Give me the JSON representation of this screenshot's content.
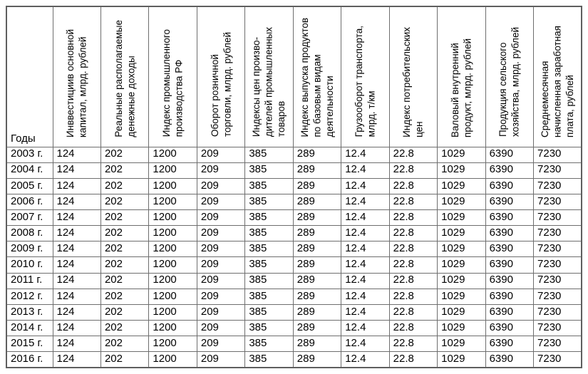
{
  "table": {
    "year_header": "Годы",
    "columns": [
      "Инввестициив основной\nкапитал, млрд. рублей",
      "Реальные располагаемые\nденежные доходы",
      "Индекс промышленного\nпроизводства РФ",
      "Оборот розничной\nторговли, млрд. рублей",
      "Индексы цен произво-\nдителей промышленных\nтоваров",
      "Индекс выпуска продуктов\nпо базовым видам\nдеятельности",
      "Грузооборот транспорта,\nмлрд. т/км",
      "Индекс потребительских\nцен",
      "Валовый внутренний\nпродукт, млрд. рублей",
      "Продукция сельского\nхозяйства, млрд. рублей",
      "Среднемесячная\nначисленная заработная\nплата, рублей"
    ],
    "rows": [
      {
        "year": "2003 г.",
        "values": [
          "124",
          "202",
          "1200",
          "209",
          "385",
          "289",
          "12.4",
          "22.8",
          "1029",
          "6390",
          "7230"
        ]
      },
      {
        "year": "2004 г.",
        "values": [
          "124",
          "202",
          "1200",
          "209",
          "385",
          "289",
          "12.4",
          "22.8",
          "1029",
          "6390",
          "7230"
        ]
      },
      {
        "year": "2005 г.",
        "values": [
          "124",
          "202",
          "1200",
          "209",
          "385",
          "289",
          "12.4",
          "22.8",
          "1029",
          "6390",
          "7230"
        ]
      },
      {
        "year": "2006 г.",
        "values": [
          "124",
          "202",
          "1200",
          "209",
          "385",
          "289",
          "12.4",
          "22.8",
          "1029",
          "6390",
          "7230"
        ]
      },
      {
        "year": "2007 г.",
        "values": [
          "124",
          "202",
          "1200",
          "209",
          "385",
          "289",
          "12.4",
          "22.8",
          "1029",
          "6390",
          "7230"
        ]
      },
      {
        "year": "2008 г.",
        "values": [
          "124",
          "202",
          "1200",
          "209",
          "385",
          "289",
          "12.4",
          "22.8",
          "1029",
          "6390",
          "7230"
        ]
      },
      {
        "year": "2009 г.",
        "values": [
          "124",
          "202",
          "1200",
          "209",
          "385",
          "289",
          "12.4",
          "22.8",
          "1029",
          "6390",
          "7230"
        ]
      },
      {
        "year": "2010 г.",
        "values": [
          "124",
          "202",
          "1200",
          "209",
          "385",
          "289",
          "12.4",
          "22.8",
          "1029",
          "6390",
          "7230"
        ]
      },
      {
        "year": "2011 г.",
        "values": [
          "124",
          "202",
          "1200",
          "209",
          "385",
          "289",
          "12.4",
          "22.8",
          "1029",
          "6390",
          "7230"
        ]
      },
      {
        "year": "2012 г.",
        "values": [
          "124",
          "202",
          "1200",
          "209",
          "385",
          "289",
          "12.4",
          "22.8",
          "1029",
          "6390",
          "7230"
        ]
      },
      {
        "year": "2013 г.",
        "values": [
          "124",
          "202",
          "1200",
          "209",
          "385",
          "289",
          "12.4",
          "22.8",
          "1029",
          "6390",
          "7230"
        ]
      },
      {
        "year": "2014 г.",
        "values": [
          "124",
          "202",
          "1200",
          "209",
          "385",
          "289",
          "12.4",
          "22.8",
          "1029",
          "6390",
          "7230"
        ]
      },
      {
        "year": "2015 г.",
        "values": [
          "124",
          "202",
          "1200",
          "209",
          "385",
          "289",
          "12.4",
          "22.8",
          "1029",
          "6390",
          "7230"
        ]
      },
      {
        "year": "2016 г.",
        "values": [
          "124",
          "202",
          "1200",
          "209",
          "385",
          "289",
          "12.4",
          "22.8",
          "1029",
          "6390",
          "7230"
        ]
      }
    ]
  },
  "chart_data": {
    "type": "table",
    "columns": [
      "Годы",
      "Инввестициив основной капитал, млрд. рублей",
      "Реальные располагаемые денежные доходы",
      "Индекс промышленного производства РФ",
      "Оборот розничной торговли, млрд. рублей",
      "Индексы цен производителей промышленных товаров",
      "Индекс выпуска продуктов по базовым видам деятельности",
      "Грузооборот транспорта, млрд. т/км",
      "Индекс потребительских цен",
      "Валовый внутренний продукт, млрд. рублей",
      "Продукция сельского хозяйства, млрд. рублей",
      "Среднемесячная начисленная заработная плата, рублей"
    ],
    "categories": [
      "2003 г.",
      "2004 г.",
      "2005 г.",
      "2006 г.",
      "2007 г.",
      "2008 г.",
      "2009 г.",
      "2010 г.",
      "2011 г.",
      "2012 г.",
      "2013 г.",
      "2014 г.",
      "2015 г.",
      "2016 г."
    ],
    "row_values": [
      124,
      202,
      1200,
      209,
      385,
      289,
      12.4,
      22.8,
      1029,
      6390,
      7230
    ],
    "note_values_identical_for_all_years": true
  },
  "colors": {
    "outer_border": "#5f5f5f",
    "inner_border": "#6e6e6e",
    "text": "#000000",
    "background": "#ffffff"
  }
}
